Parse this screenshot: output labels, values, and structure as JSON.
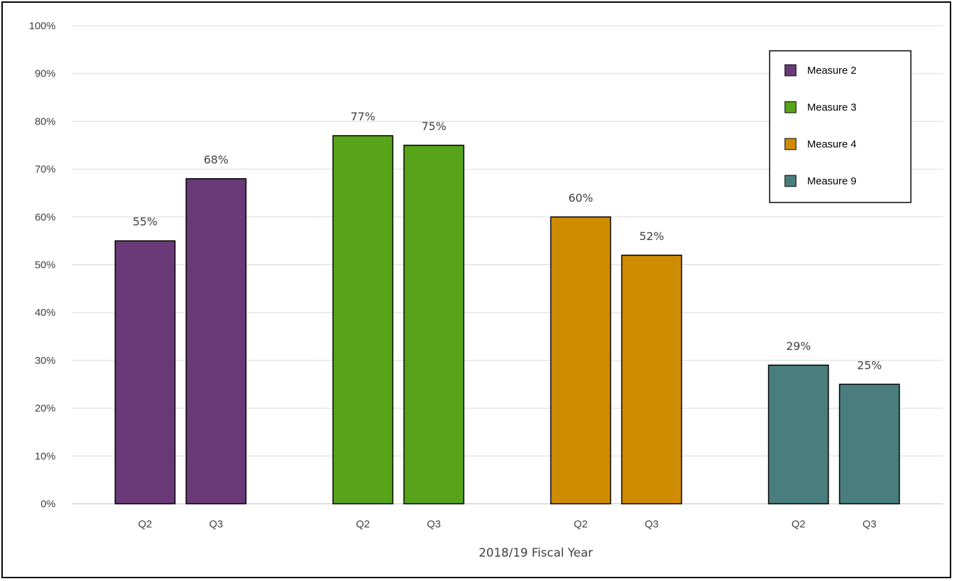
{
  "chart_data": {
    "type": "bar",
    "title": "",
    "xlabel": "2018/19 Fiscal Year",
    "ylabel": "",
    "ylim": [
      0,
      100
    ],
    "y_ticks": [
      "0%",
      "10%",
      "20%",
      "30%",
      "40%",
      "50%",
      "60%",
      "70%",
      "80%",
      "90%",
      "100%"
    ],
    "y_tick_values": [
      0,
      10,
      20,
      30,
      40,
      50,
      60,
      70,
      80,
      90,
      100
    ],
    "grid": "horizontal",
    "legend_position": "top-right",
    "categories": [
      "Q2",
      "Q3",
      "Q2",
      "Q3",
      "Q2",
      "Q3",
      "Q2",
      "Q3"
    ],
    "groups": [
      {
        "series": "Measure 2",
        "color": "#6A3A78",
        "bars": [
          {
            "category": "Q2",
            "value": 55,
            "label": "55%"
          },
          {
            "category": "Q3",
            "value": 68,
            "label": "68%"
          }
        ]
      },
      {
        "series": "Measure 3",
        "color": "#57A31A",
        "bars": [
          {
            "category": "Q2",
            "value": 77,
            "label": "77%"
          },
          {
            "category": "Q3",
            "value": 75,
            "label": "75%"
          }
        ]
      },
      {
        "series": "Measure 4",
        "color": "#D08C00",
        "bars": [
          {
            "category": "Q2",
            "value": 60,
            "label": "60%"
          },
          {
            "category": "Q3",
            "value": 52,
            "label": "52%"
          }
        ]
      },
      {
        "series": "Measure 9",
        "color": "#4A7E7E",
        "bars": [
          {
            "category": "Q2",
            "value": 29,
            "label": "29%"
          },
          {
            "category": "Q3",
            "value": 25,
            "label": "25%"
          }
        ]
      }
    ],
    "legend": [
      "Measure 2",
      "Measure 3",
      "Measure 4",
      "Measure 9"
    ]
  }
}
